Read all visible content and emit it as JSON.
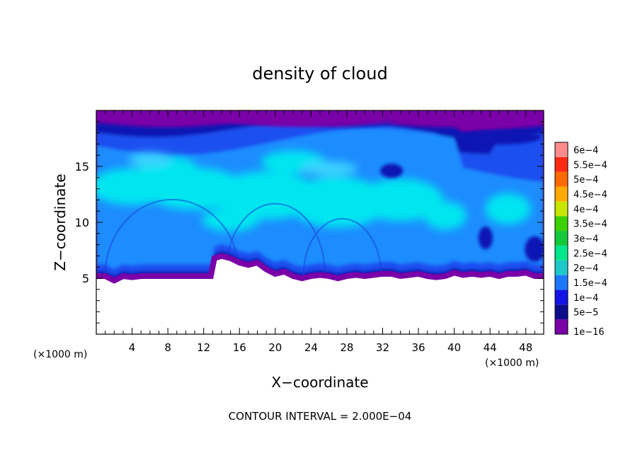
{
  "chart_data": {
    "type": "heatmap",
    "title": "density of cloud",
    "xlabel": "X−coordinate",
    "ylabel": "Z−coordinate",
    "x_unit": "(×1000 m)",
    "x_unit_right": "(×1000 m)",
    "footer": "CONTOUR INTERVAL = 2.000E−04",
    "xlim": [
      0,
      50
    ],
    "ylim": [
      0,
      20
    ],
    "x_ticks": [
      4,
      8,
      12,
      16,
      20,
      24,
      28,
      32,
      36,
      40,
      44,
      48
    ],
    "x_tick_labels": [
      "4",
      "8",
      "12",
      "16",
      "20",
      "24",
      "28",
      "32",
      "36",
      "40",
      "44",
      "48"
    ],
    "y_ticks": [
      5,
      10,
      15
    ],
    "y_tick_labels": [
      "5",
      "10",
      "15"
    ],
    "colorbar": {
      "levels": [
        {
          "label": "1e−16",
          "color": "#7a00a8"
        },
        {
          "label": "5e−5",
          "color": "#0d0d8c"
        },
        {
          "label": "1e−4",
          "color": "#1414e6"
        },
        {
          "label": "1.5e−4",
          "color": "#1e78ff"
        },
        {
          "label": "2e−4",
          "color": "#1ec8c8"
        },
        {
          "label": "2.5e−4",
          "color": "#00e68c"
        },
        {
          "label": "3e−4",
          "color": "#14c83c"
        },
        {
          "label": "3.5e−4",
          "color": "#3cd200"
        },
        {
          "label": "4e−4",
          "color": "#c8e600"
        },
        {
          "label": "4.5e−4",
          "color": "#ffaa00"
        },
        {
          "label": "5e−4",
          "color": "#ff6a00"
        },
        {
          "label": "5.5e−4",
          "color": "#ff2a14"
        },
        {
          "label": "6e−4",
          "color": "#ff8c8c"
        }
      ]
    },
    "field_colors": {
      "top_band": "#7a00a8",
      "upper_blue": "#1e50f0",
      "mid_blue": "#1e8cff",
      "core": "#00e6f0",
      "light_core": "#3ad2ff",
      "dark_blue": "#0a14b4",
      "base": "#7a00a8"
    },
    "cloud_base_profile": {
      "x": [
        0,
        1,
        2,
        3,
        4,
        5,
        6,
        7,
        8,
        9,
        10,
        11,
        12,
        12.8,
        13.2,
        14,
        15,
        16,
        17,
        18,
        19,
        20,
        21,
        22,
        23,
        24,
        25,
        26,
        27,
        28,
        29,
        30,
        31,
        32,
        33,
        34,
        35,
        36,
        37,
        38,
        39,
        40,
        41,
        42,
        43,
        44,
        45,
        46,
        47,
        48,
        49,
        50
      ],
      "z": [
        5.0,
        5.0,
        4.6,
        5.0,
        4.9,
        5.0,
        5.0,
        5.0,
        5.0,
        5.0,
        5.0,
        5.0,
        5.0,
        5.0,
        6.6,
        6.8,
        6.6,
        6.2,
        6.0,
        6.2,
        5.6,
        5.2,
        5.4,
        5.0,
        4.8,
        5.0,
        5.1,
        5.0,
        4.8,
        5.0,
        5.1,
        5.0,
        5.1,
        5.2,
        5.2,
        5.0,
        5.1,
        5.2,
        5.0,
        4.9,
        5.0,
        5.3,
        5.1,
        5.2,
        5.1,
        5.2,
        5.0,
        5.2,
        5.2,
        5.3,
        5.0,
        5.0
      ]
    }
  }
}
